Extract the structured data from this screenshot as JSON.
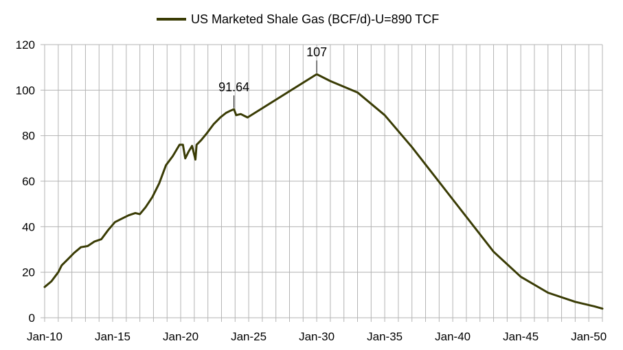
{
  "chart_data": {
    "type": "line",
    "title": "",
    "xlabel": "",
    "ylabel": "",
    "xlim": [
      "Jan-10",
      "Jan-51"
    ],
    "ylim": [
      0,
      120
    ],
    "y_ticks": [
      0,
      20,
      40,
      60,
      80,
      100,
      120
    ],
    "x_ticks": [
      "Jan-10",
      "Jan-15",
      "Jan-20",
      "Jan-25",
      "Jan-30",
      "Jan-35",
      "Jan-40",
      "Jan-45",
      "Jan-50"
    ],
    "grid": true,
    "legend": "top-center",
    "series": [
      {
        "name": "US Marketed Shale Gas (BCF/d)-U=890 TCF",
        "color": "#3a3c05",
        "points": [
          [
            "2010-01",
            13.5
          ],
          [
            "2010-07",
            16
          ],
          [
            "2011-01",
            20
          ],
          [
            "2011-04",
            23
          ],
          [
            "2011-10",
            26
          ],
          [
            "2012-03",
            28.5
          ],
          [
            "2012-09",
            31
          ],
          [
            "2013-03",
            31.5
          ],
          [
            "2013-09",
            33.5
          ],
          [
            "2014-03",
            34.5
          ],
          [
            "2014-09",
            38.5
          ],
          [
            "2015-03",
            42
          ],
          [
            "2015-09",
            43.5
          ],
          [
            "2016-03",
            45
          ],
          [
            "2016-09",
            46
          ],
          [
            "2017-01",
            45.5
          ],
          [
            "2017-06",
            48.5
          ],
          [
            "2017-12",
            53
          ],
          [
            "2018-06",
            59
          ],
          [
            "2018-12",
            67
          ],
          [
            "2019-06",
            71
          ],
          [
            "2019-12",
            76
          ],
          [
            "2020-03",
            76
          ],
          [
            "2020-05",
            70
          ],
          [
            "2020-08",
            73
          ],
          [
            "2020-11",
            75.5
          ],
          [
            "2021-02",
            69.5
          ],
          [
            "2021-03",
            76
          ],
          [
            "2021-07",
            78
          ],
          [
            "2021-12",
            81
          ],
          [
            "2022-06",
            85
          ],
          [
            "2022-12",
            88
          ],
          [
            "2023-05",
            90
          ],
          [
            "2023-09",
            91
          ],
          [
            "2023-12",
            91.64
          ],
          [
            "2024-02",
            89
          ],
          [
            "2024-06",
            89.5
          ],
          [
            "2024-10",
            88.5
          ],
          [
            "2024-12",
            88
          ],
          [
            "2030-01",
            107
          ],
          [
            "2031-01",
            104
          ],
          [
            "2033-01",
            99
          ],
          [
            "2035-01",
            89
          ],
          [
            "2037-01",
            75
          ],
          [
            "2040-01",
            52
          ],
          [
            "2043-01",
            29
          ],
          [
            "2045-01",
            18
          ],
          [
            "2047-01",
            11
          ],
          [
            "2049-01",
            7
          ],
          [
            "2050-06",
            5
          ],
          [
            "2051-01",
            4
          ]
        ]
      }
    ],
    "annotations": [
      {
        "label": "91.64",
        "x": "2023-12",
        "y": 91.64
      },
      {
        "label": "107",
        "x": "2030-01",
        "y": 107
      }
    ]
  }
}
